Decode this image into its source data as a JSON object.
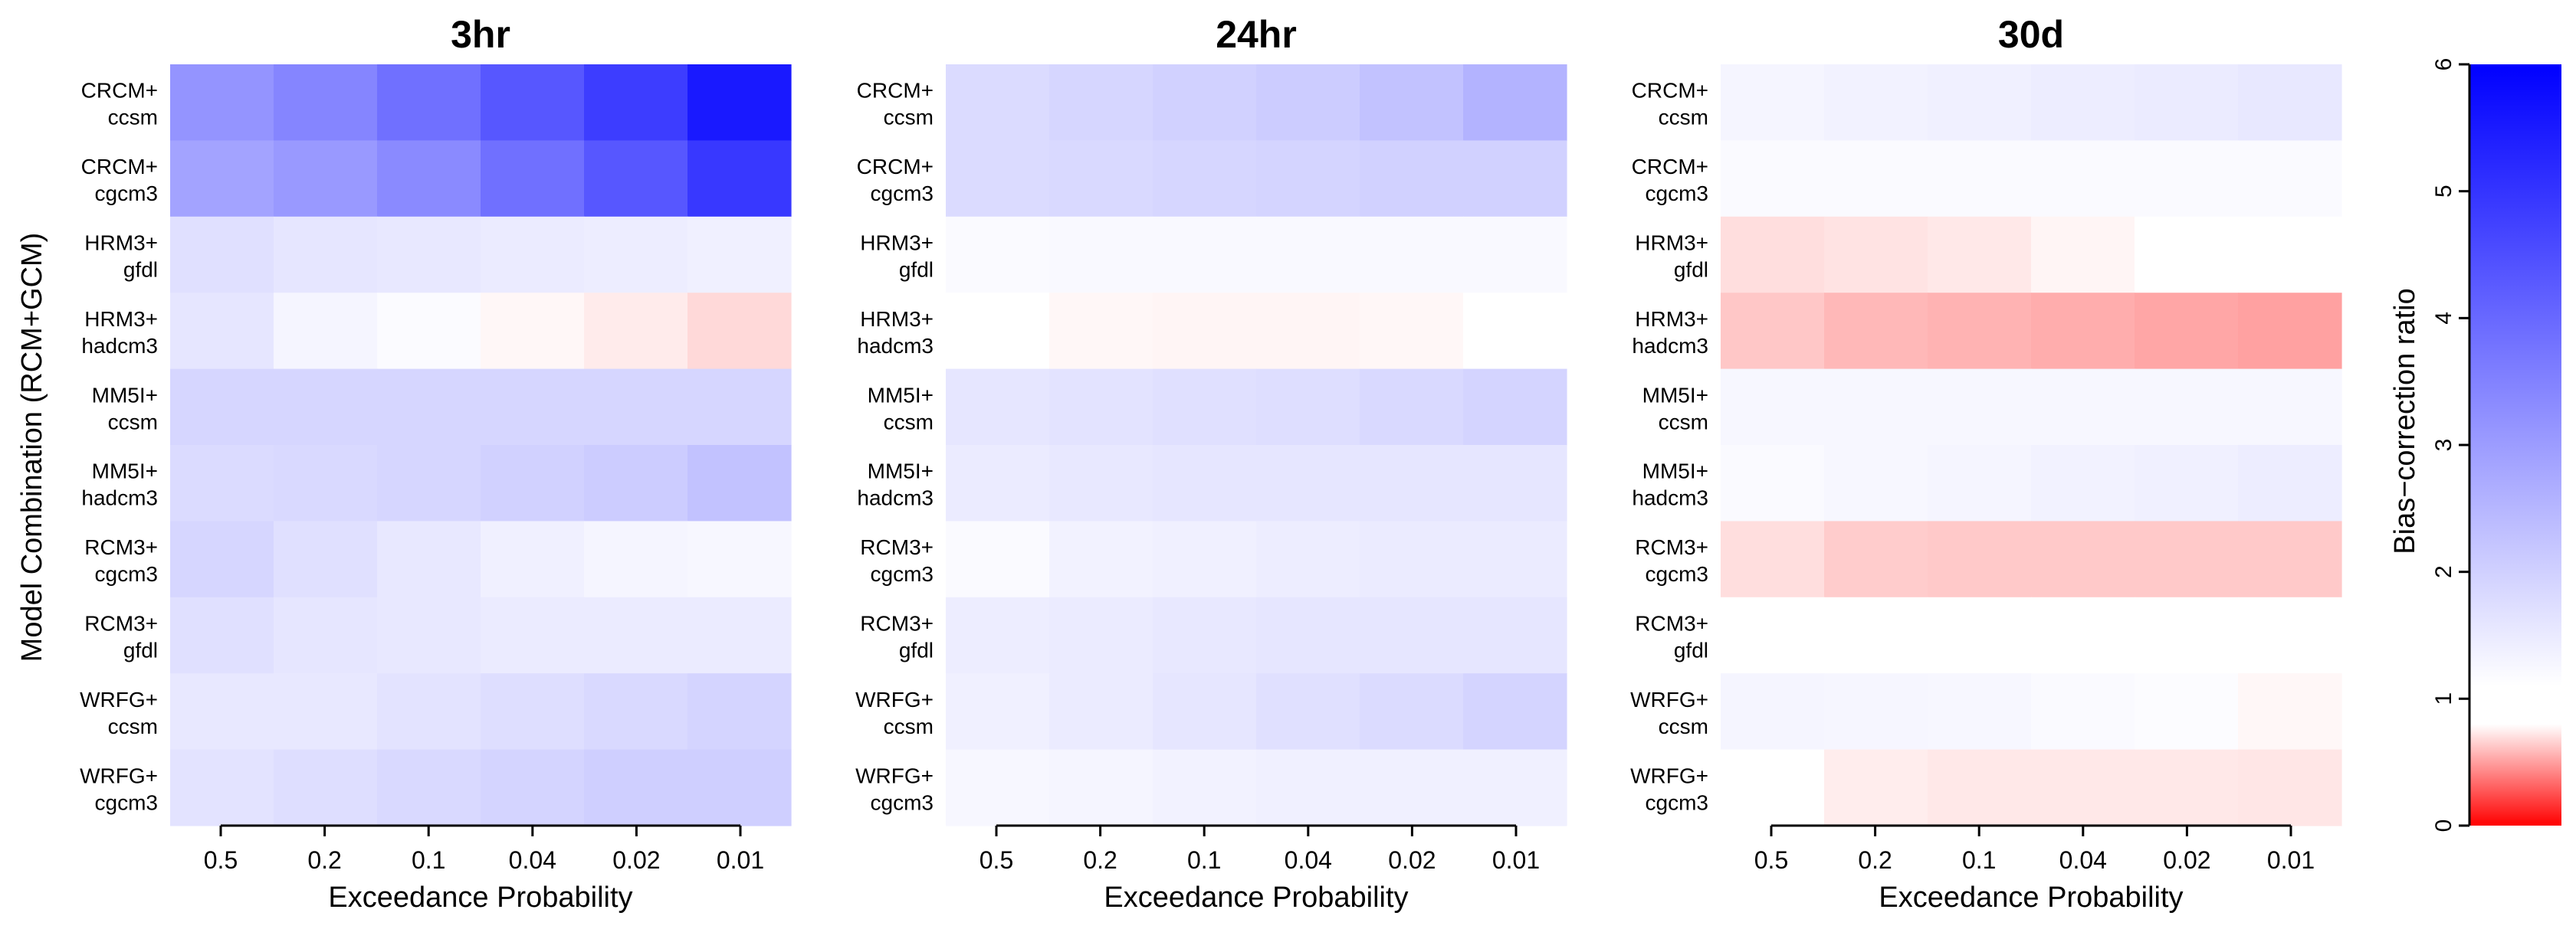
{
  "chart_data": {
    "type": "heatmap",
    "ylabel": "Model Combination (RCM+GCM)",
    "xlabel": "Exceedance Probability",
    "x_ticks": [
      "0.5",
      "0.2",
      "0.1",
      "0.04",
      "0.02",
      "0.01"
    ],
    "rows": [
      [
        "CRCM+",
        "ccsm"
      ],
      [
        "CRCM+",
        "cgcm3"
      ],
      [
        "HRM3+",
        "gfdl"
      ],
      [
        "HRM3+",
        "hadcm3"
      ],
      [
        "MM5I+",
        "ccsm"
      ],
      [
        "MM5I+",
        "hadcm3"
      ],
      [
        "RCM3+",
        "cgcm3"
      ],
      [
        "RCM3+",
        "gfdl"
      ],
      [
        "WRFG+",
        "ccsm"
      ],
      [
        "WRFG+",
        "cgcm3"
      ]
    ],
    "panels": [
      {
        "title": "3hr",
        "values": [
          [
            3.1,
            3.4,
            3.8,
            4.3,
            4.8,
            5.5
          ],
          [
            2.8,
            3.0,
            3.3,
            3.8,
            4.3,
            4.9
          ],
          [
            1.6,
            1.5,
            1.45,
            1.4,
            1.35,
            1.3
          ],
          [
            1.5,
            1.2,
            1.08,
            0.97,
            0.92,
            0.85
          ],
          [
            1.8,
            1.8,
            1.8,
            1.8,
            1.8,
            1.8
          ],
          [
            1.7,
            1.75,
            1.8,
            1.9,
            2.0,
            2.2
          ],
          [
            1.8,
            1.6,
            1.45,
            1.3,
            1.2,
            1.15
          ],
          [
            1.6,
            1.5,
            1.45,
            1.4,
            1.4,
            1.4
          ],
          [
            1.45,
            1.45,
            1.55,
            1.65,
            1.75,
            1.85
          ],
          [
            1.55,
            1.65,
            1.75,
            1.85,
            1.95,
            1.95
          ]
        ]
      },
      {
        "title": "24hr",
        "values": [
          [
            1.7,
            1.8,
            1.9,
            2.0,
            2.2,
            2.5
          ],
          [
            1.7,
            1.75,
            1.8,
            1.85,
            1.9,
            1.9
          ],
          [
            1.1,
            1.12,
            1.12,
            1.12,
            1.12,
            1.12
          ],
          [
            1.0,
            0.97,
            0.96,
            0.96,
            0.97,
            1.0
          ],
          [
            1.5,
            1.55,
            1.6,
            1.65,
            1.75,
            1.85
          ],
          [
            1.4,
            1.45,
            1.5,
            1.5,
            1.5,
            1.5
          ],
          [
            1.1,
            1.25,
            1.3,
            1.35,
            1.4,
            1.4
          ],
          [
            1.35,
            1.4,
            1.45,
            1.5,
            1.5,
            1.5
          ],
          [
            1.3,
            1.4,
            1.5,
            1.6,
            1.7,
            1.85
          ],
          [
            1.15,
            1.2,
            1.25,
            1.3,
            1.3,
            1.3
          ]
        ]
      },
      {
        "title": "30d",
        "values": [
          [
            1.2,
            1.25,
            1.3,
            1.35,
            1.4,
            1.45
          ],
          [
            1.1,
            1.1,
            1.1,
            1.1,
            1.1,
            1.1
          ],
          [
            0.87,
            0.89,
            0.91,
            0.96,
            1.0,
            1.0
          ],
          [
            0.78,
            0.72,
            0.7,
            0.68,
            0.65,
            0.63
          ],
          [
            1.15,
            1.15,
            1.15,
            1.15,
            1.15,
            1.15
          ],
          [
            1.1,
            1.15,
            1.2,
            1.25,
            1.3,
            1.35
          ],
          [
            0.87,
            0.8,
            0.79,
            0.79,
            0.79,
            0.79
          ],
          [
            1.0,
            1.0,
            1.0,
            1.0,
            1.0,
            1.0
          ],
          [
            1.2,
            1.18,
            1.15,
            1.1,
            1.05,
            0.97
          ],
          [
            1.0,
            0.93,
            0.91,
            0.91,
            0.91,
            0.9
          ]
        ]
      }
    ],
    "colorbar": {
      "label": "Bias−correction ratio",
      "ticks": [
        "0",
        "1",
        "2",
        "3",
        "4",
        "5",
        "6"
      ],
      "range": [
        0,
        6
      ],
      "colors": {
        "low": "#ff0000",
        "mid": "#ffffff",
        "high": "#0000ff"
      }
    }
  }
}
